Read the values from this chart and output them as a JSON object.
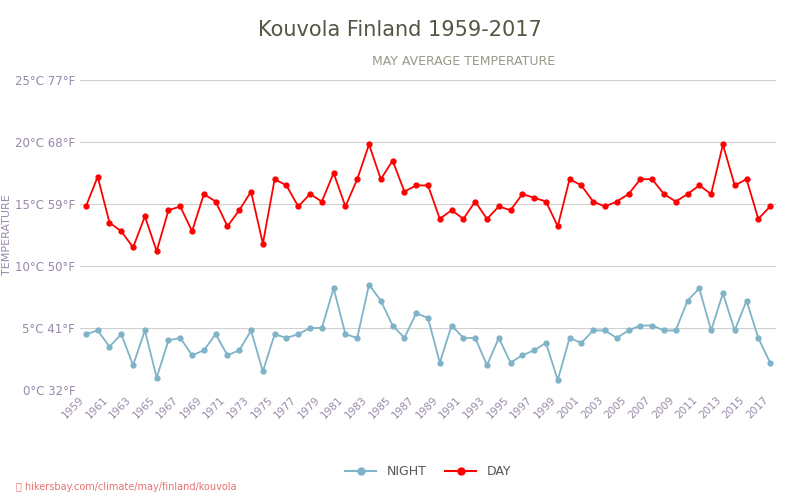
{
  "title": "Kouvola Finland 1959-2017",
  "subtitle": "MAY AVERAGE TEMPERATURE",
  "ylabel": "TEMPERATURE",
  "years": [
    1959,
    1960,
    1961,
    1962,
    1963,
    1964,
    1965,
    1966,
    1967,
    1968,
    1969,
    1970,
    1971,
    1972,
    1973,
    1974,
    1975,
    1976,
    1977,
    1978,
    1979,
    1980,
    1981,
    1982,
    1983,
    1984,
    1985,
    1986,
    1987,
    1988,
    1989,
    1990,
    1991,
    1992,
    1993,
    1994,
    1995,
    1996,
    1997,
    1998,
    1999,
    2000,
    2001,
    2002,
    2003,
    2004,
    2005,
    2006,
    2007,
    2008,
    2009,
    2010,
    2011,
    2012,
    2013,
    2014,
    2015,
    2016,
    2017
  ],
  "day": [
    14.8,
    17.2,
    13.5,
    12.8,
    11.5,
    14.0,
    11.2,
    14.5,
    14.8,
    12.8,
    15.8,
    15.2,
    13.2,
    14.5,
    16.0,
    11.8,
    17.0,
    16.5,
    14.8,
    15.8,
    15.2,
    17.5,
    14.8,
    17.0,
    19.8,
    17.0,
    18.5,
    16.0,
    16.5,
    16.5,
    13.8,
    14.5,
    13.8,
    15.2,
    13.8,
    14.8,
    14.5,
    15.8,
    15.5,
    15.2,
    13.2,
    17.0,
    16.5,
    15.2,
    14.8,
    15.2,
    15.8,
    17.0,
    17.0,
    15.8,
    15.2,
    15.8,
    16.5,
    15.8,
    19.8,
    16.5,
    17.0,
    13.8,
    14.8
  ],
  "night": [
    4.5,
    4.8,
    3.5,
    4.5,
    2.0,
    4.8,
    1.0,
    4.0,
    4.2,
    2.8,
    3.2,
    4.5,
    2.8,
    3.2,
    4.8,
    1.5,
    4.5,
    4.2,
    4.5,
    5.0,
    5.0,
    8.2,
    4.5,
    4.2,
    8.5,
    7.2,
    5.2,
    4.2,
    6.2,
    5.8,
    2.2,
    5.2,
    4.2,
    4.2,
    2.0,
    4.2,
    2.2,
    2.8,
    3.2,
    3.8,
    0.8,
    4.2,
    3.8,
    4.8,
    4.8,
    4.2,
    4.8,
    5.2,
    5.2,
    4.8,
    4.8,
    7.2,
    8.2,
    4.8,
    7.8,
    4.8,
    7.2,
    4.2,
    2.2
  ],
  "day_color": "#ff0000",
  "night_color": "#7fb3c8",
  "ylim": [
    0,
    25
  ],
  "yticks_c": [
    0,
    5,
    10,
    15,
    20,
    25
  ],
  "ytick_labels": [
    "0°C 32°F",
    "5°C 41°F",
    "10°C 50°F",
    "15°C 59°F",
    "20°C 68°F",
    "25°C 77°F"
  ],
  "background_color": "#ffffff",
  "grid_color": "#d0d0d0",
  "title_color": "#555544",
  "subtitle_color": "#999988",
  "ylabel_color": "#9988aa",
  "tick_color": "#9988aa",
  "watermark": "hikersbay.com/climate/may/finland/kouvola",
  "legend_night": "NIGHT",
  "legend_day": "DAY",
  "title_fontsize": 15,
  "subtitle_fontsize": 9
}
